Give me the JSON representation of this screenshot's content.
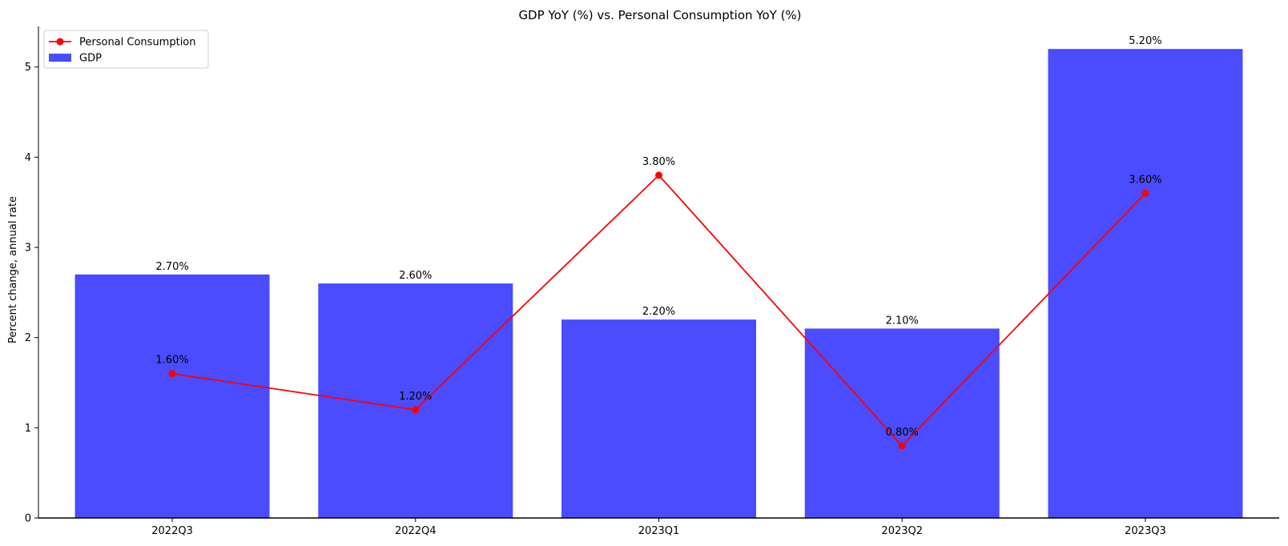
{
  "chart_data": {
    "type": "bar",
    "title": "GDP YoY (%) vs. Personal Consumption YoY (%)",
    "xlabel": "",
    "ylabel": "Percent change, annual rate",
    "categories": [
      "2022Q3",
      "2022Q4",
      "2023Q1",
      "2023Q2",
      "2023Q3"
    ],
    "ylim": [
      0,
      5.45
    ],
    "yticks": [
      0,
      1,
      2,
      3,
      4,
      5
    ],
    "grid": false,
    "legend_position": "top-left",
    "series": [
      {
        "name": "GDP",
        "type": "bar",
        "color": "#4B4BFF",
        "values": [
          2.7,
          2.6,
          2.2,
          2.1,
          5.2
        ],
        "labels": [
          "2.70%",
          "2.60%",
          "2.20%",
          "2.10%",
          "5.20%"
        ]
      },
      {
        "name": "Personal Consumption",
        "type": "line",
        "marker": "circle",
        "color": "#FF0000",
        "values": [
          1.6,
          1.2,
          3.8,
          0.8,
          3.6
        ],
        "labels": [
          "1.60%",
          "1.20%",
          "3.80%",
          "0.80%",
          "3.60%"
        ]
      }
    ]
  }
}
